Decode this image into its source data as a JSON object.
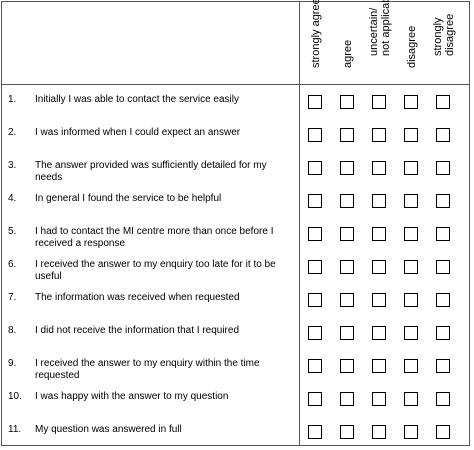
{
  "columns": [
    "strongly agree",
    "agree",
    "uncertain/ not applicable",
    "disagree",
    "strongly disagree"
  ],
  "column_lines": [
    [
      "strongly agree"
    ],
    [
      "agree"
    ],
    [
      "uncertain/",
      "not applicable"
    ],
    [
      "disagree"
    ],
    [
      "strongly",
      "disagree"
    ]
  ],
  "questions": [
    {
      "num": "1.",
      "text": "Initially I was able to contact the service easily"
    },
    {
      "num": "2.",
      "text": "I was informed when I could expect an answer"
    },
    {
      "num": "3.",
      "text": "The answer provided was sufficiently detailed for my needs"
    },
    {
      "num": "4.",
      "text": "In general I found the service to be helpful"
    },
    {
      "num": "5.",
      "text": "I had to contact the MI centre more than once before I received a response"
    },
    {
      "num": "6.",
      "text": "I received the answer to my enquiry too late for it to be useful"
    },
    {
      "num": "7.",
      "text": "The information was received when requested"
    },
    {
      "num": "8.",
      "text": "I did not receive the information that I required"
    },
    {
      "num": "9.",
      "text": "I received the answer to my enquiry within the time requested"
    },
    {
      "num": "10.",
      "text": "I was happy with the answer to my question"
    },
    {
      "num": "11.",
      "text": "My question was answered in full"
    }
  ]
}
